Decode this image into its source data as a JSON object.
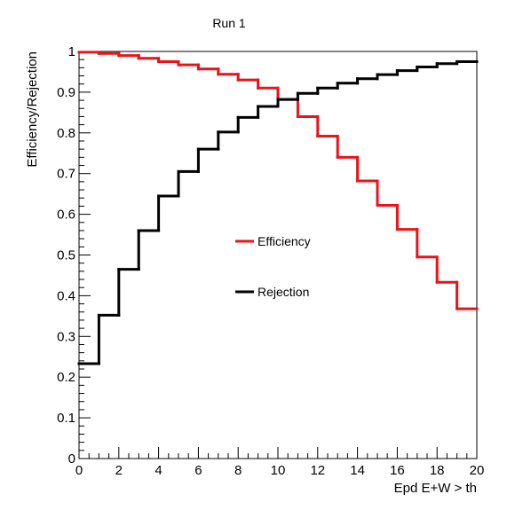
{
  "chart_data": {
    "type": "line",
    "step": true,
    "title": "Run 1",
    "xlabel": "Epd E+W > th",
    "ylabel": "Efficiency/Rejection",
    "xlim": [
      0,
      20
    ],
    "ylim": [
      0,
      1
    ],
    "xticks": [
      0,
      2,
      4,
      6,
      8,
      10,
      12,
      14,
      16,
      18,
      20
    ],
    "xtick_labels": [
      "0",
      "2",
      "4",
      "6",
      "8",
      "10",
      "12",
      "14",
      "16",
      "18",
      "20"
    ],
    "yticks": [
      0,
      0.1,
      0.2,
      0.3,
      0.4,
      0.5,
      0.6,
      0.7,
      0.8,
      0.9,
      1
    ],
    "ytick_labels": [
      "0",
      "0.1",
      "0.2",
      "0.3",
      "0.4",
      "0.5",
      "0.6",
      "0.7",
      "0.8",
      "0.9",
      "1"
    ],
    "bin_edges": [
      0,
      1,
      2,
      3,
      4,
      5,
      6,
      7,
      8,
      9,
      10,
      11,
      12,
      13,
      14,
      15,
      16,
      17,
      18,
      19,
      20
    ],
    "series": [
      {
        "name": "Efficiency",
        "color": "#e8141a",
        "values": [
          0.998,
          0.995,
          0.99,
          0.983,
          0.975,
          0.967,
          0.957,
          0.944,
          0.93,
          0.91,
          0.882,
          0.84,
          0.792,
          0.74,
          0.682,
          0.622,
          0.563,
          0.495,
          0.433,
          0.368
        ]
      },
      {
        "name": "Rejection",
        "color": "#000000",
        "values": [
          0.233,
          0.352,
          0.465,
          0.56,
          0.645,
          0.705,
          0.76,
          0.802,
          0.838,
          0.865,
          0.882,
          0.897,
          0.91,
          0.922,
          0.933,
          0.943,
          0.953,
          0.962,
          0.97,
          0.975
        ]
      }
    ],
    "legend_position": "center"
  }
}
